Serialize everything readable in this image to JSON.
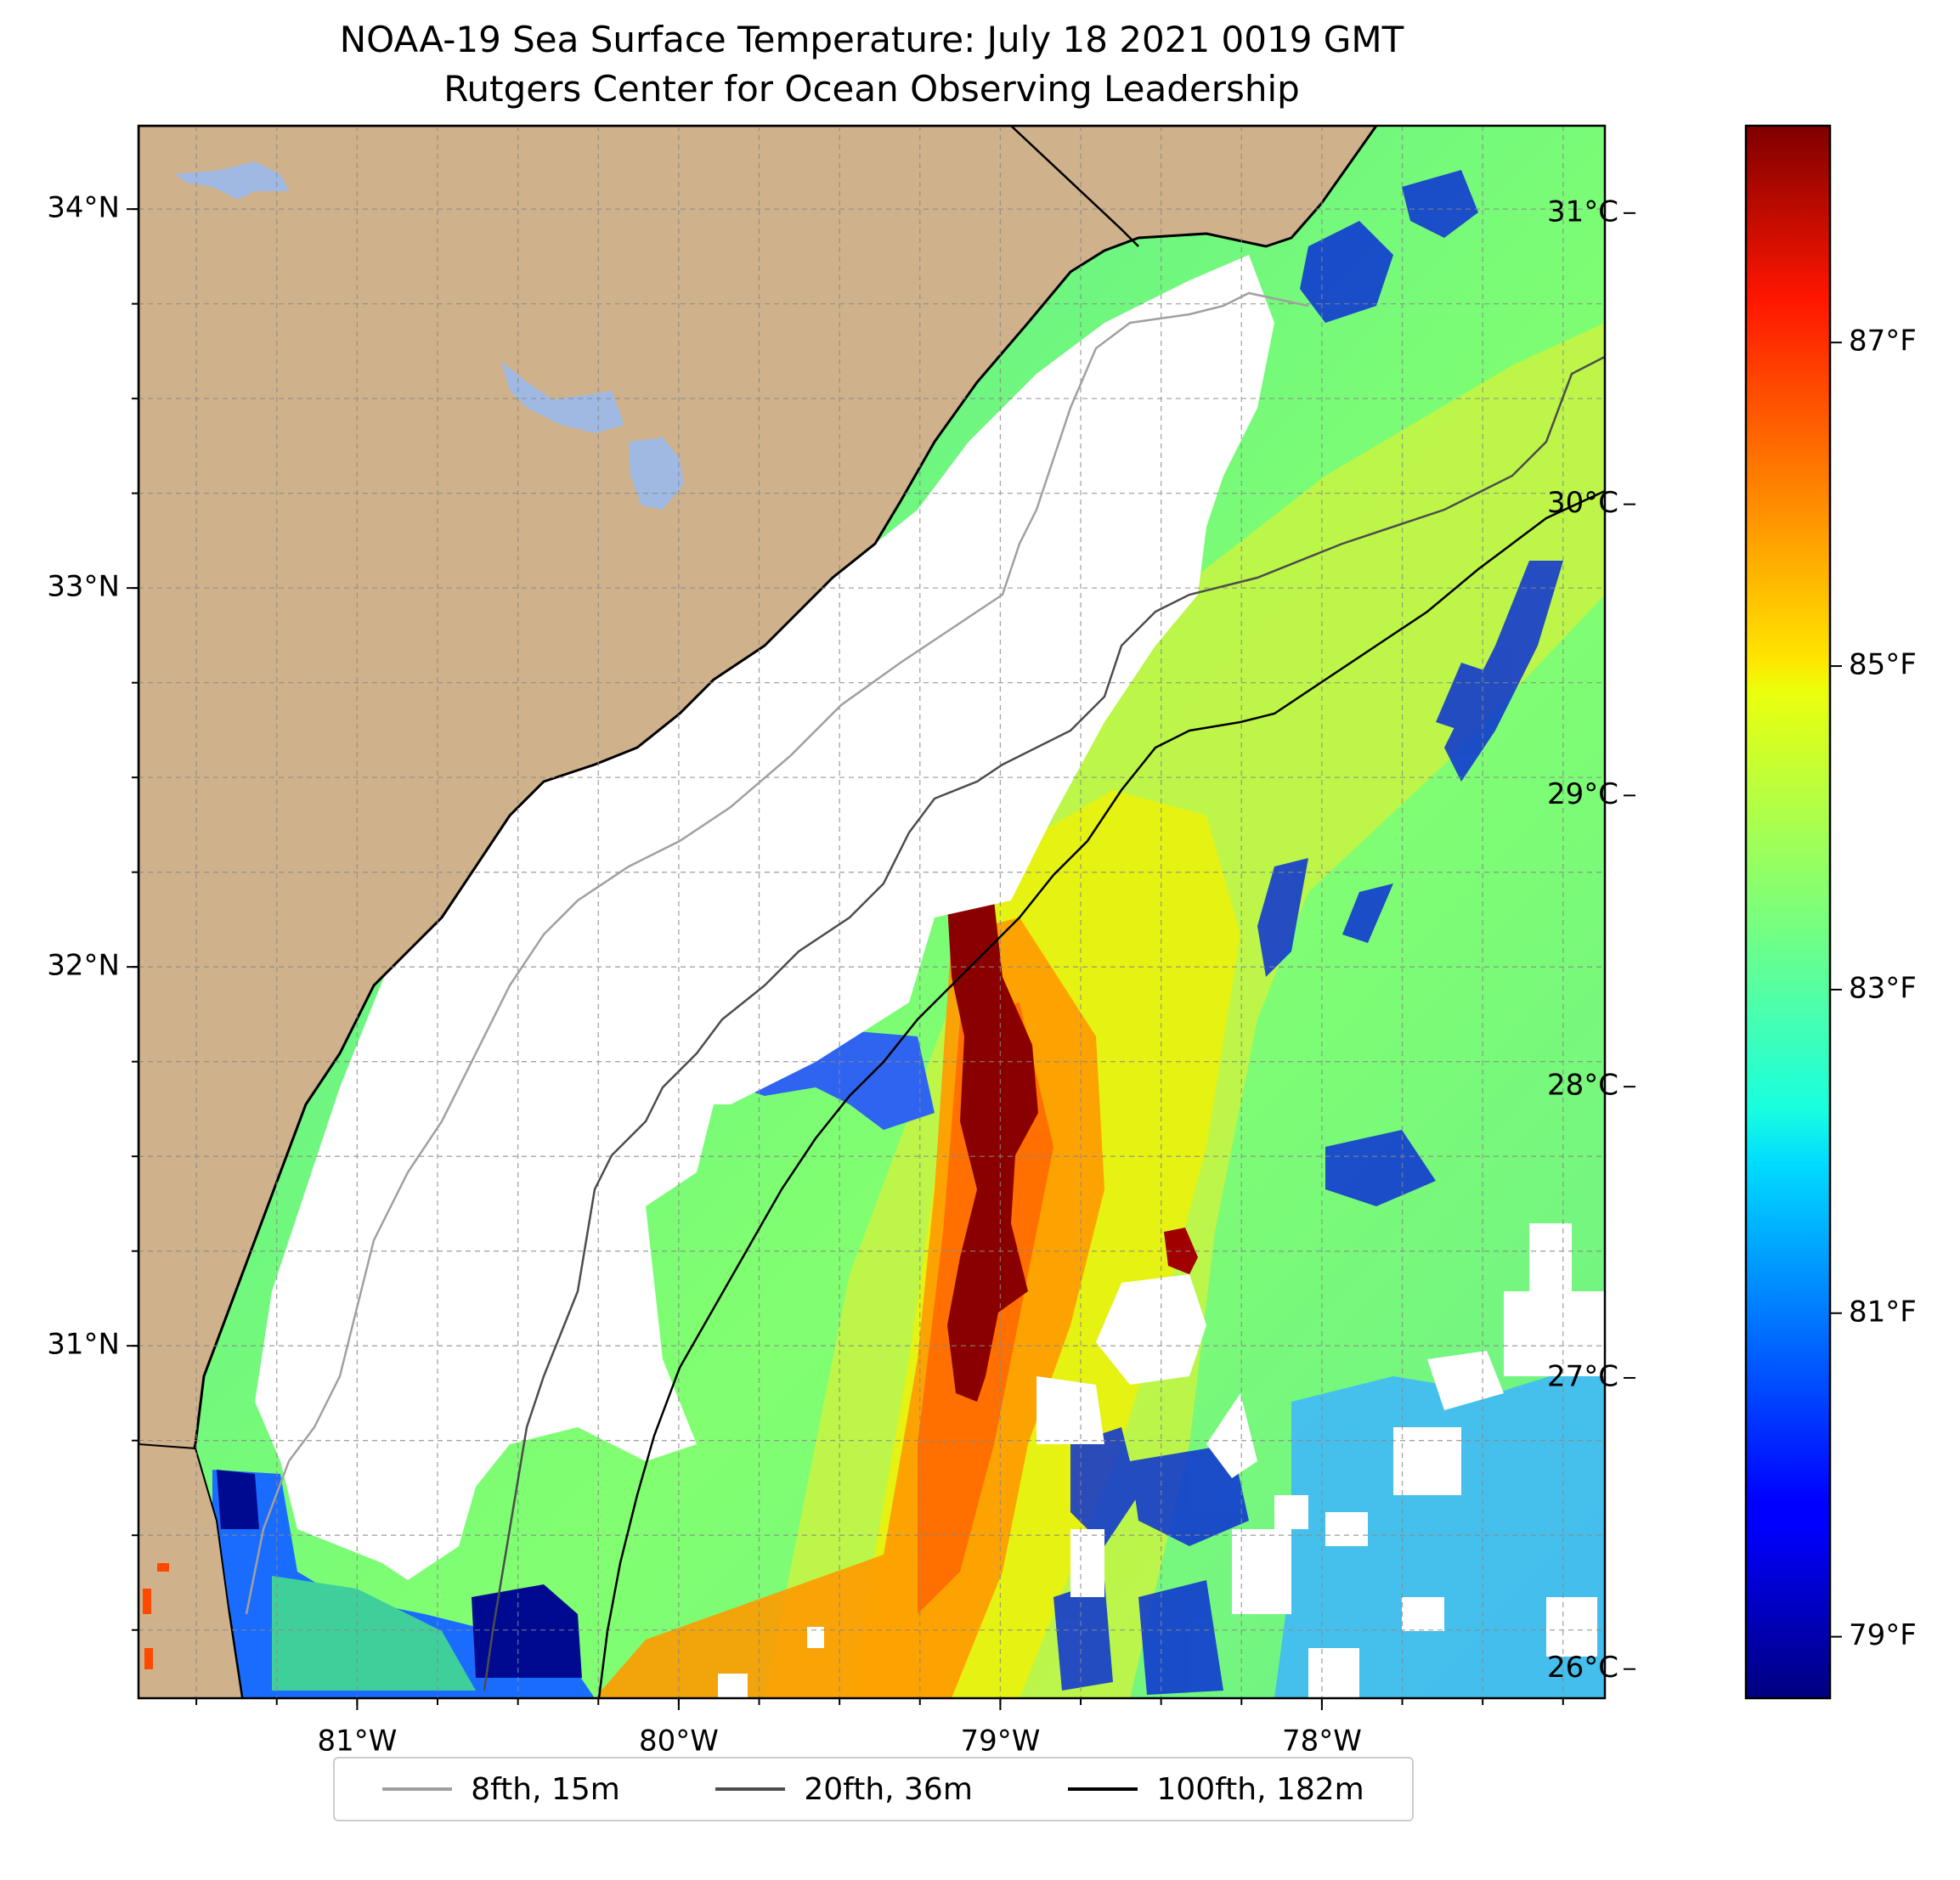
{
  "title": {
    "line1": "NOAA-19 Sea Surface Temperature: July 18 2021 0019 GMT",
    "line2": "Rutgers Center for Ocean Observing Leadership"
  },
  "map": {
    "lon_range": [
      -81.68,
      -77.12
    ],
    "lat_range": [
      30.07,
      34.22
    ],
    "lon_ticks": [
      -81,
      -80,
      -79,
      -78
    ],
    "lon_tick_labels": [
      "81°W",
      "80°W",
      "79°W",
      "78°W"
    ],
    "lat_ticks": [
      34,
      33,
      32,
      31
    ],
    "lat_tick_labels": [
      "34°N",
      "33°N",
      "32°N",
      "31°N"
    ],
    "gridlines": "dashed, every 0.25°",
    "colors": {
      "land": "#cfb28b",
      "lakes": "#a0b9e2",
      "no_data": "#ffffff",
      "coastline": "#000000"
    }
  },
  "colorbar": {
    "colormap": "jet",
    "celsius_labels": [
      "31°C",
      "30°C",
      "29°C",
      "28°C",
      "27°C",
      "26°C"
    ],
    "fahrenheit_labels": [
      "87°F",
      "85°F",
      "83°F",
      "81°F",
      "79°F"
    ],
    "range_c": [
      25.9,
      31.3
    ]
  },
  "legend": [
    {
      "label": "8fth, 15m",
      "color": "#a0a0a0"
    },
    {
      "label": "20fth, 36m",
      "color": "#4d4d4d"
    },
    {
      "label": "100fth, 182m",
      "color": "#000000"
    }
  ]
}
